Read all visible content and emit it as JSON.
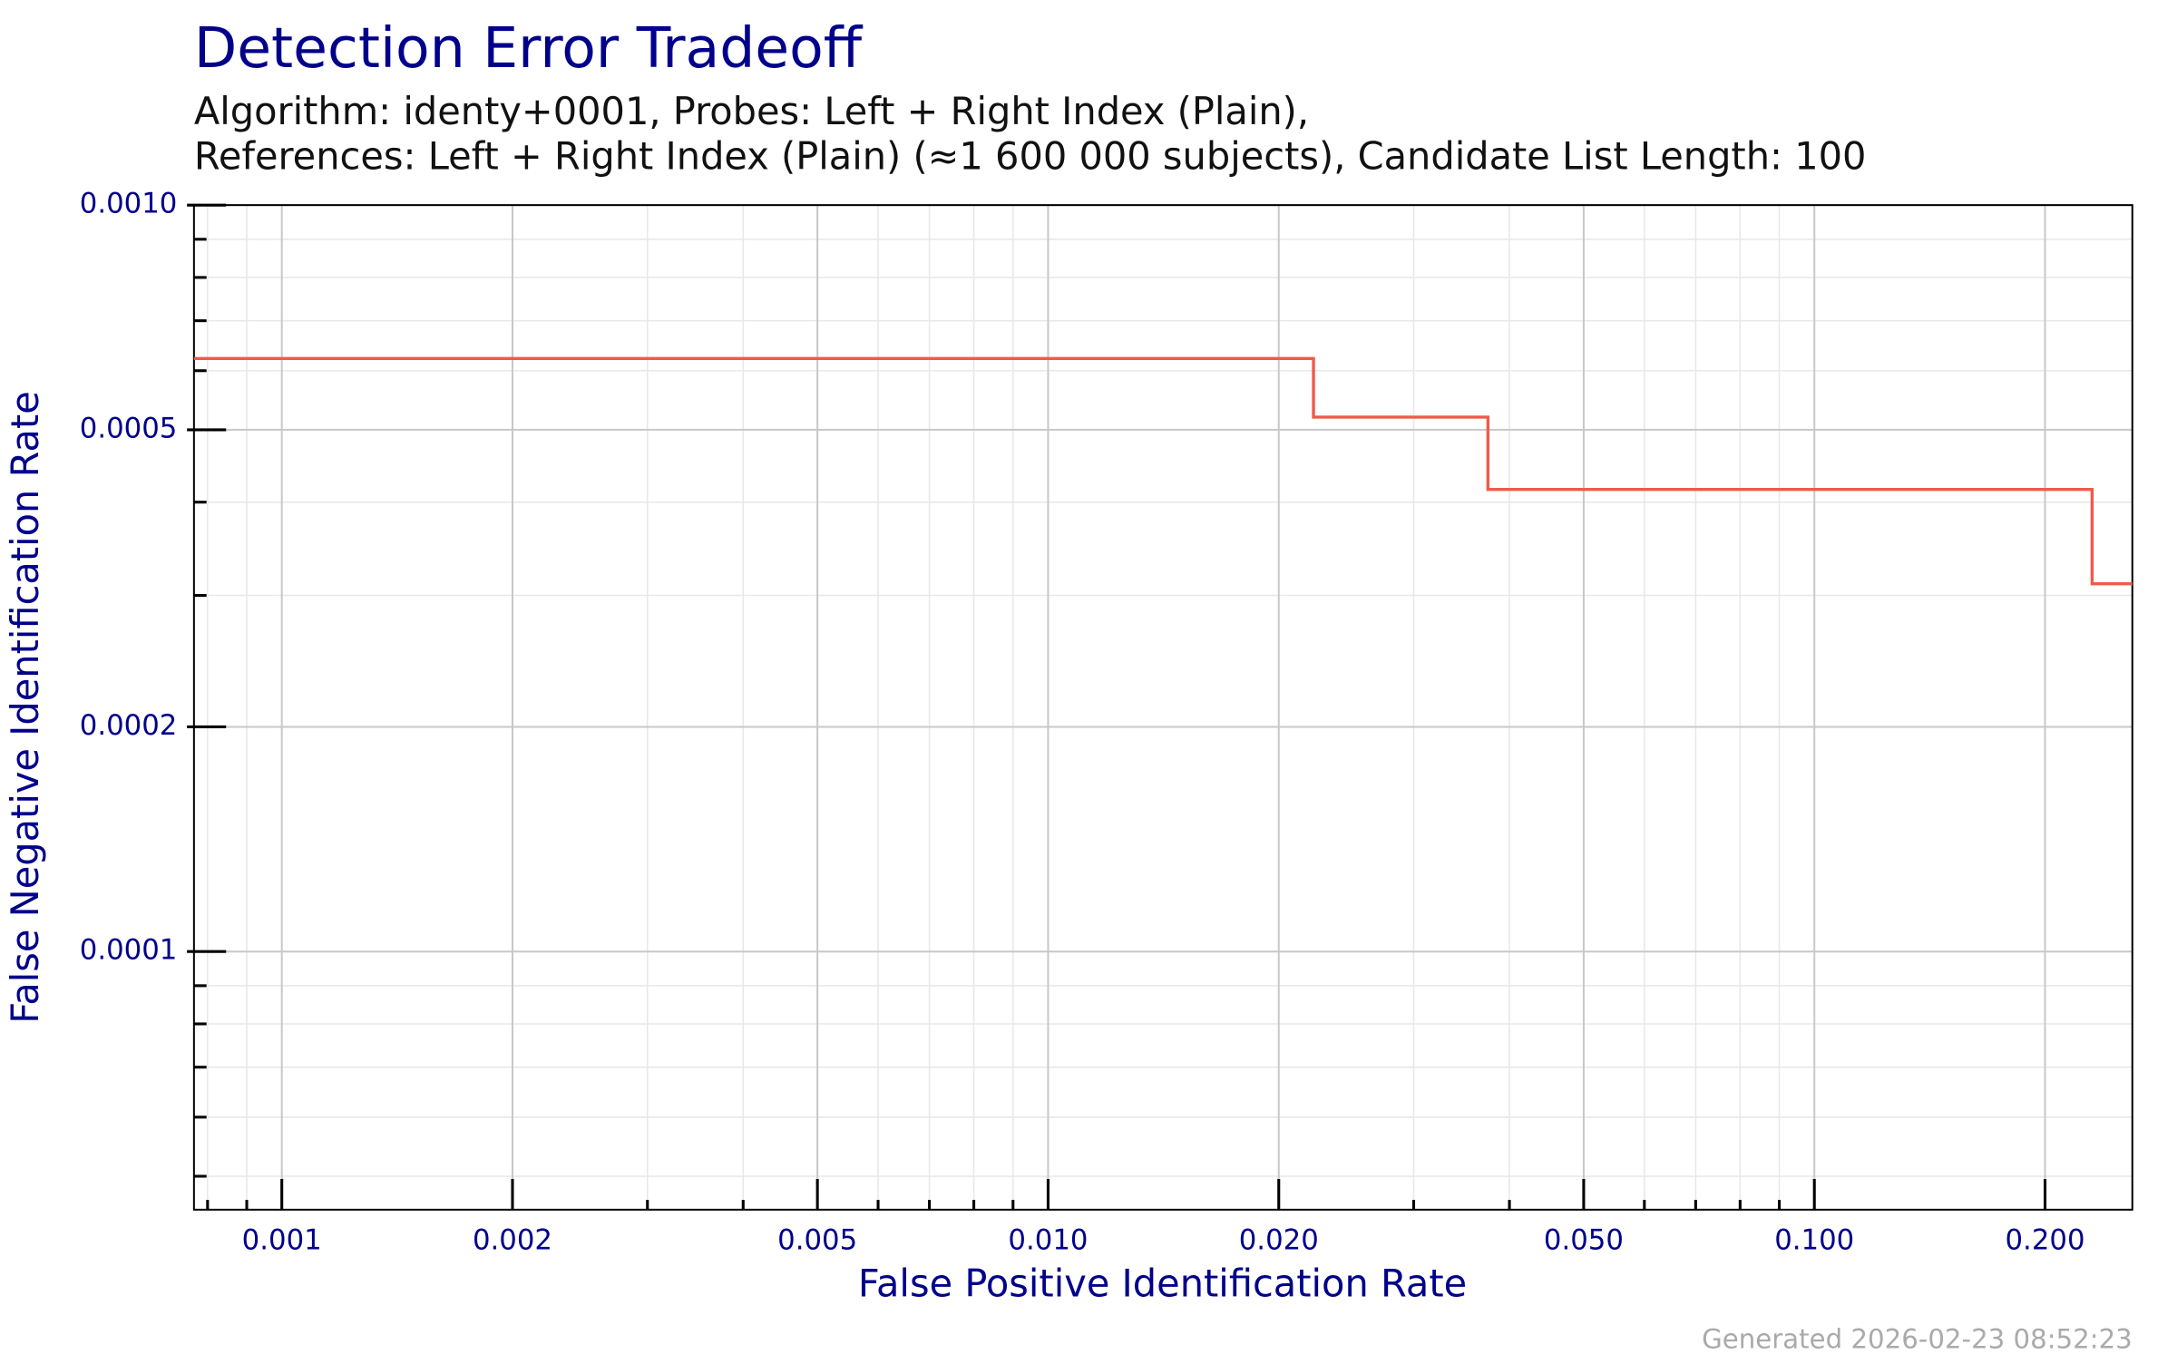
{
  "chart_data": {
    "type": "line",
    "title": "Detection Error Tradeoff",
    "subtitle": [
      "Algorithm: identy+0001, Probes: Left + Right Index (Plain),",
      "References: Left + Right Index (Plain) (≈1 600 000 subjects), Candidate List Length: 100"
    ],
    "xlabel": "False Positive Identification Rate",
    "ylabel": "False Negative Identification Rate",
    "footer": "Generated 2026-02-23 08:52:23",
    "xscale": "log",
    "yscale": "log",
    "grid": true,
    "xlim": [
      0.000768,
      0.26
    ],
    "ylim": [
      4.51e-05,
      0.001
    ],
    "xticks": [
      0.001,
      0.002,
      0.005,
      {
        "value": 0.01,
        "label": "0.010"
      },
      {
        "value": 0.02,
        "label": "0.020"
      },
      {
        "value": 0.05,
        "label": "0.050"
      },
      {
        "value": 0.1,
        "label": "0.100"
      },
      {
        "value": 0.2,
        "label": "0.200"
      }
    ],
    "yticks": [
      0.0001,
      0.0002,
      0.0005,
      {
        "value": 0.001,
        "label": "0.0010"
      }
    ],
    "xminorticks": [
      0.0008,
      0.0009,
      0.003,
      0.004,
      0.006,
      0.007,
      0.008,
      0.009,
      0.03,
      0.04,
      0.06,
      0.07,
      0.08,
      0.09
    ],
    "yminorticks": [
      5e-05,
      6e-05,
      7e-05,
      8e-05,
      9e-05,
      0.0003,
      0.0004,
      0.0006,
      0.0007,
      0.0008,
      0.0009
    ],
    "series": [
      {
        "color": "#f05a4a",
        "x": [
          0.000768,
          0.0222,
          0.0222,
          0.0375,
          0.0375,
          0.2304,
          0.2304,
          0.26
        ],
        "values": [
          0.000623,
          0.000623,
          0.00052,
          0.00052,
          0.000416,
          0.000416,
          0.000311,
          0.000311
        ]
      }
    ]
  }
}
